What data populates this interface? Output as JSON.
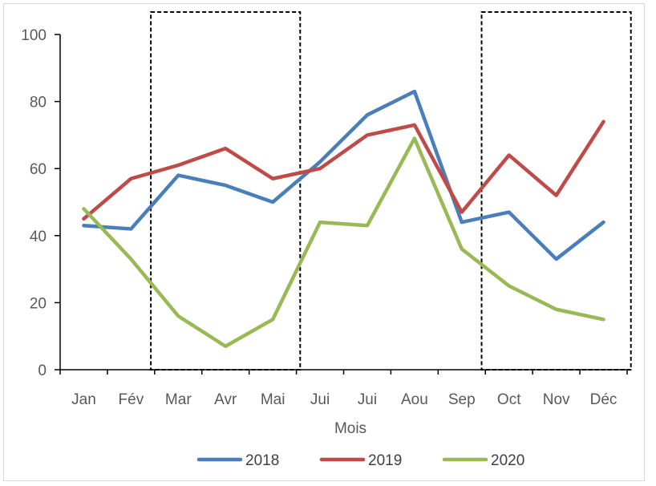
{
  "chart_data": {
    "type": "line",
    "title": "",
    "xlabel": "Mois",
    "ylabel": "",
    "ylim": [
      0,
      100
    ],
    "yticks": [
      0,
      20,
      40,
      60,
      80,
      100
    ],
    "categories": [
      "Jan",
      "Fév",
      "Mar",
      "Avr",
      "Mai",
      "Jui",
      "Jui",
      "Aou",
      "Sep",
      "Oct",
      "Nov",
      "Déc"
    ],
    "series": [
      {
        "name": "2018",
        "color": "#4a7ebb",
        "values": [
          43,
          42,
          58,
          55,
          50,
          62,
          76,
          83,
          44,
          47,
          33,
          44
        ]
      },
      {
        "name": "2019",
        "color": "#be4b48",
        "values": [
          45,
          57,
          61,
          66,
          57,
          60,
          70,
          73,
          47,
          64,
          52,
          74
        ]
      },
      {
        "name": "2020",
        "color": "#98b954",
        "values": [
          48,
          33,
          16,
          7,
          15,
          44,
          43,
          69,
          36,
          25,
          18,
          15
        ]
      }
    ],
    "highlight_ranges": [
      {
        "from": "Mar",
        "to": "Mai"
      },
      {
        "from": "Oct",
        "to": "Déc"
      }
    ],
    "legend": {
      "position": "bottom"
    },
    "grid": false
  }
}
